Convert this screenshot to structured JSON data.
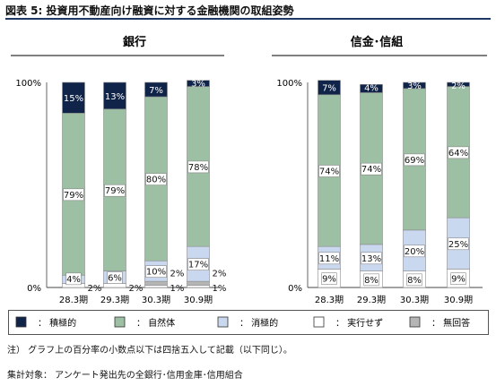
{
  "figure_title": "図表 5:  投資用不動産向け融資に対する金融機関の取組姿勢",
  "colors": {
    "積極的": "#0f2448",
    "自然体": "#9dbfa3",
    "消極的": "#c9d7ef",
    "実行せず": "#ffffff",
    "無回答": "#b5b5b5",
    "title_rule": "#1f3864"
  },
  "chart_data": [
    {
      "type": "bar",
      "stacked": true,
      "title": "銀行",
      "categories": [
        "28.3期",
        "29.3期",
        "30.3期",
        "30.9期"
      ],
      "ylim": [
        0,
        100
      ],
      "y_tick_labels": [
        "0%",
        "100%"
      ],
      "series": [
        {
          "name": "実行せず",
          "values": [
            2,
            2,
            1,
            1
          ]
        },
        {
          "name": "消極的",
          "values": [
            4,
            6,
            10,
            17
          ]
        },
        {
          "name": "自然体",
          "values": [
            79,
            79,
            80,
            78
          ]
        },
        {
          "name": "積極的",
          "values": [
            15,
            13,
            7,
            3
          ]
        },
        {
          "name": "無回答",
          "values": [
            0,
            0,
            2,
            2
          ]
        }
      ],
      "data_labels": [
        {
          "category": "28.3期",
          "series": "積極的",
          "text": "15%"
        },
        {
          "category": "28.3期",
          "series": "自然体",
          "text": "79%"
        },
        {
          "category": "28.3期",
          "series": "消極的",
          "text": "4%"
        },
        {
          "category": "28.3期",
          "series": "実行せず",
          "text": "2%"
        },
        {
          "category": "29.3期",
          "series": "積極的",
          "text": "13%"
        },
        {
          "category": "29.3期",
          "series": "自然体",
          "text": "79%"
        },
        {
          "category": "29.3期",
          "series": "消極的",
          "text": "6%"
        },
        {
          "category": "29.3期",
          "series": "実行せず",
          "text": "2%"
        },
        {
          "category": "30.3期",
          "series": "積極的",
          "text": "7%"
        },
        {
          "category": "30.3期",
          "series": "自然体",
          "text": "80%"
        },
        {
          "category": "30.3期",
          "series": "消極的",
          "text": "10%"
        },
        {
          "category": "30.3期",
          "series": "無回答",
          "text": "2%"
        },
        {
          "category": "30.3期",
          "series": "実行せず",
          "text": "1%"
        },
        {
          "category": "30.9期",
          "series": "積極的",
          "text": "3%"
        },
        {
          "category": "30.9期",
          "series": "自然体",
          "text": "78%"
        },
        {
          "category": "30.9期",
          "series": "消極的",
          "text": "17%"
        },
        {
          "category": "30.9期",
          "series": "無回答",
          "text": "2%"
        },
        {
          "category": "30.9期",
          "series": "実行せず",
          "text": "1%"
        }
      ]
    },
    {
      "type": "bar",
      "stacked": true,
      "title": "信金･信組",
      "categories": [
        "28.3期",
        "29.3期",
        "30.3期",
        "30.9期"
      ],
      "ylim": [
        0,
        100
      ],
      "y_tick_labels": [
        "0%",
        "100%"
      ],
      "series": [
        {
          "name": "実行せず",
          "values": [
            9,
            8,
            8,
            9
          ]
        },
        {
          "name": "消極的",
          "values": [
            11,
            13,
            20,
            25
          ]
        },
        {
          "name": "自然体",
          "values": [
            74,
            74,
            69,
            64
          ]
        },
        {
          "name": "積極的",
          "values": [
            7,
            4,
            3,
            2
          ]
        },
        {
          "name": "無回答",
          "values": [
            0,
            0,
            0,
            0
          ]
        }
      ],
      "data_labels": [
        {
          "category": "28.3期",
          "series": "積極的",
          "text": "7%"
        },
        {
          "category": "28.3期",
          "series": "自然体",
          "text": "74%"
        },
        {
          "category": "28.3期",
          "series": "消極的",
          "text": "11%"
        },
        {
          "category": "28.3期",
          "series": "実行せず",
          "text": "9%"
        },
        {
          "category": "29.3期",
          "series": "積極的",
          "text": "4%"
        },
        {
          "category": "29.3期",
          "series": "自然体",
          "text": "74%"
        },
        {
          "category": "29.3期",
          "series": "消極的",
          "text": "13%"
        },
        {
          "category": "29.3期",
          "series": "実行せず",
          "text": "8%"
        },
        {
          "category": "30.3期",
          "series": "積極的",
          "text": "3%"
        },
        {
          "category": "30.3期",
          "series": "自然体",
          "text": "69%"
        },
        {
          "category": "30.3期",
          "series": "消極的",
          "text": "20%"
        },
        {
          "category": "30.3期",
          "series": "実行せず",
          "text": "8%"
        },
        {
          "category": "30.9期",
          "series": "積極的",
          "text": "2%"
        },
        {
          "category": "30.9期",
          "series": "自然体",
          "text": "64%"
        },
        {
          "category": "30.9期",
          "series": "消極的",
          "text": "25%"
        },
        {
          "category": "30.9期",
          "series": "実行せず",
          "text": "9%"
        }
      ]
    }
  ],
  "legend": [
    {
      "label": "：  積極的",
      "series": "積極的"
    },
    {
      "label": "：  自然体",
      "series": "自然体"
    },
    {
      "label": "：  消極的",
      "series": "消極的"
    },
    {
      "label": "：  実行せず",
      "series": "実行せず"
    },
    {
      "label": "：  無回答",
      "series": "無回答"
    }
  ],
  "notes": [
    "注）  グラフ上の百分率の小数点以下は四捨五入して記載（以下同じ）。",
    "集計対象：  アンケート発出先の全銀行･信用金庫･信用組合"
  ]
}
